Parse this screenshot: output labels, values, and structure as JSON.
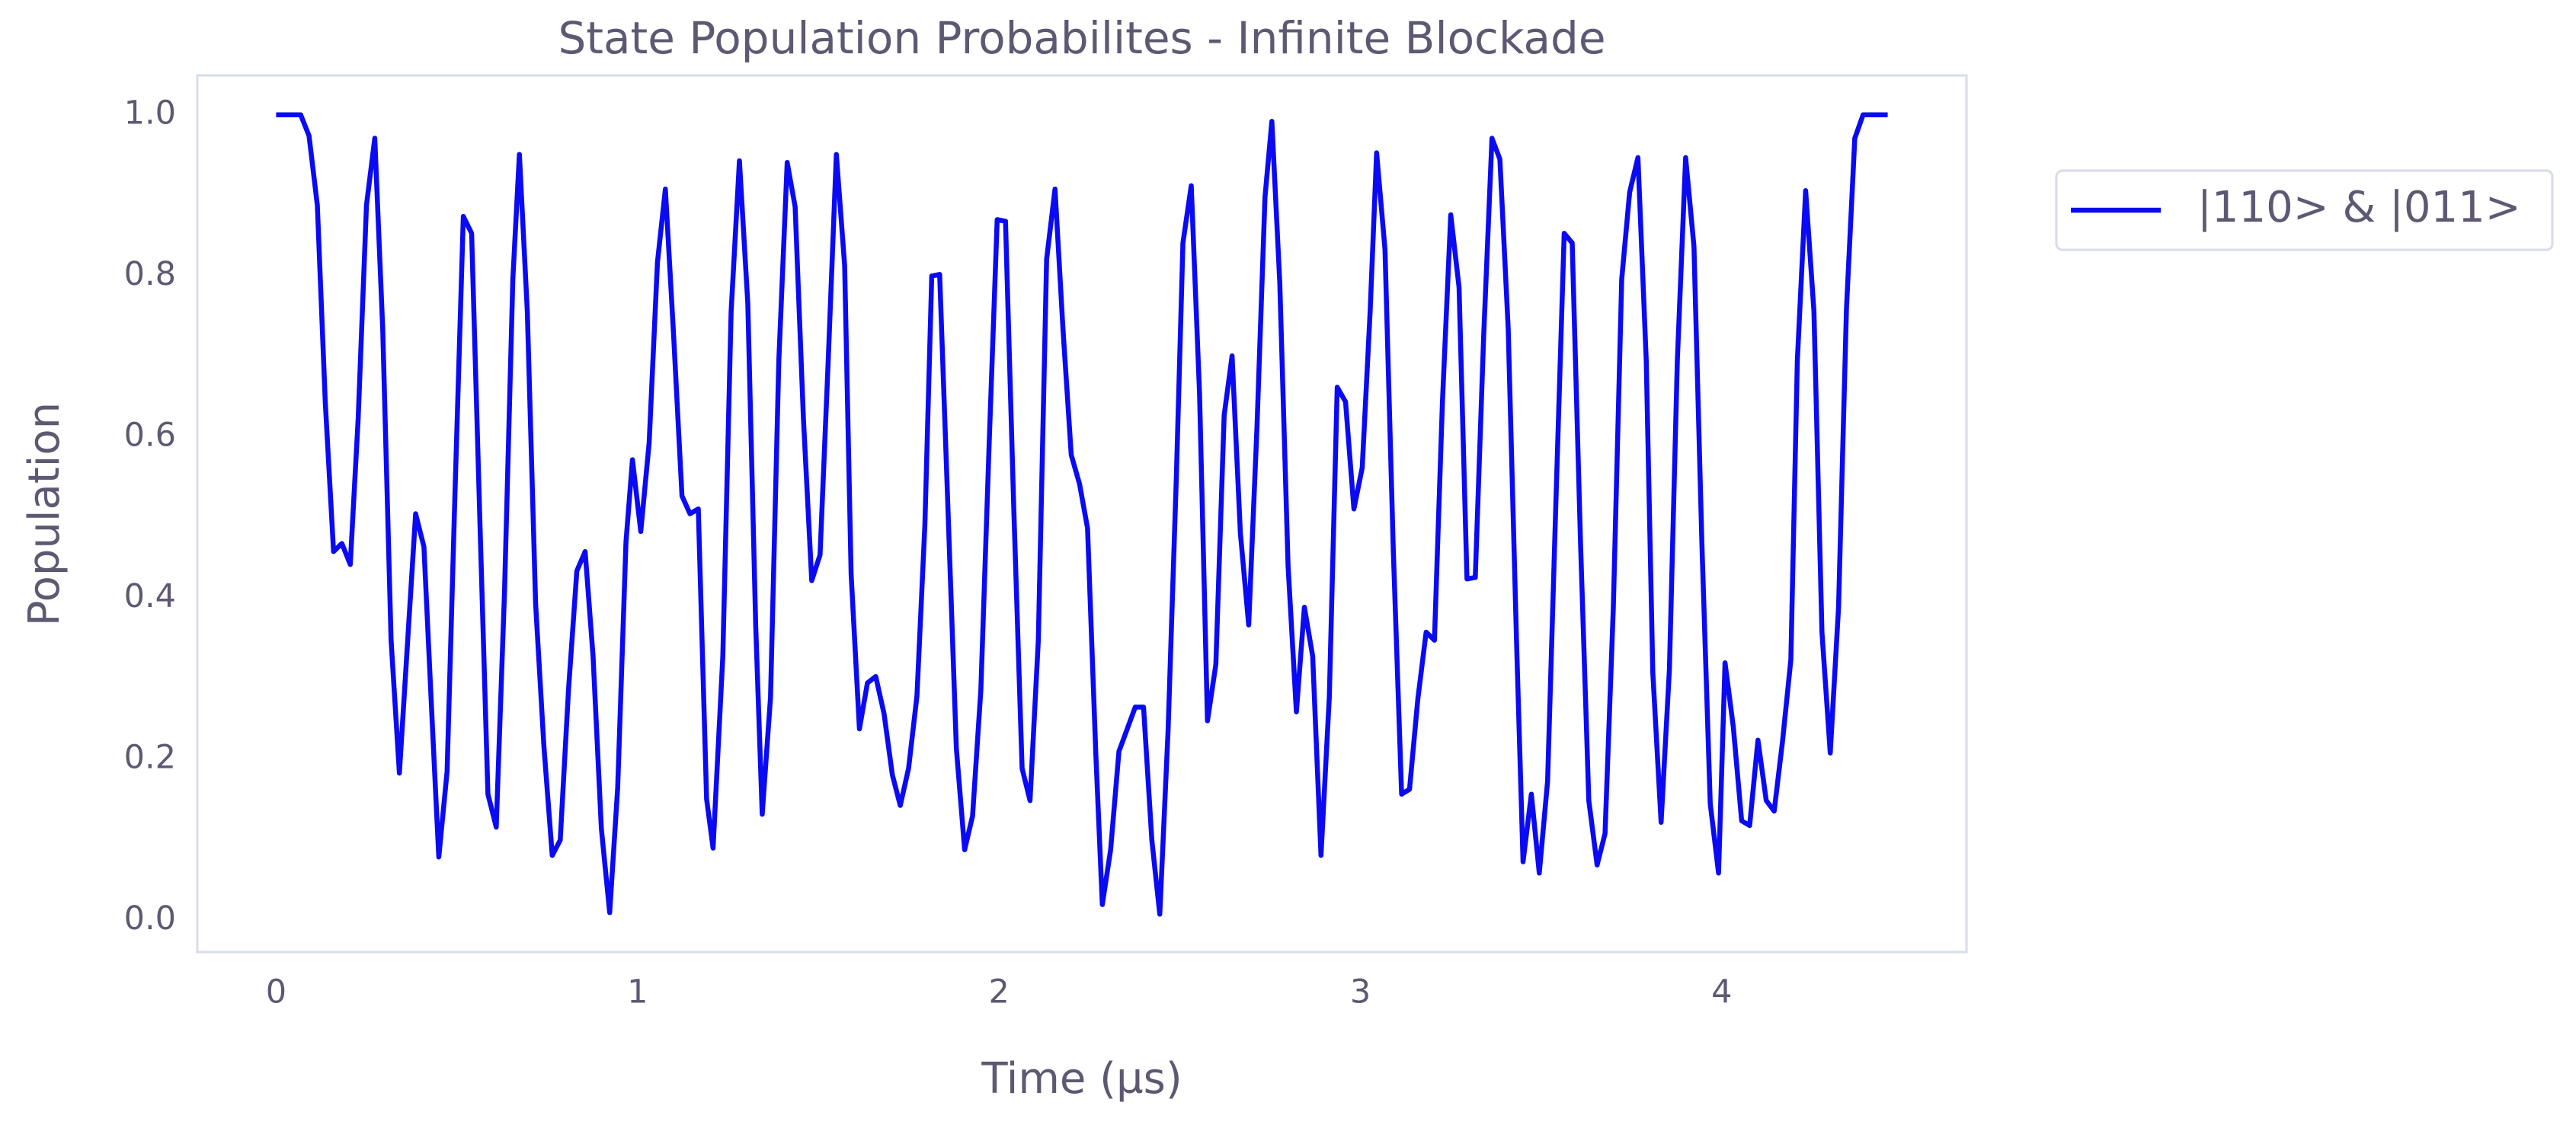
{
  "chart_data": {
    "type": "line",
    "title": "State Population Probabilites - Infinite Blockade",
    "xlabel": "Time (µs)",
    "ylabel": "Population",
    "xlim": [
      -0.218,
      4.677
    ],
    "ylim": [
      -0.039,
      1.049
    ],
    "xticks": [
      0,
      1,
      2,
      3,
      4
    ],
    "yticks": [
      {
        "value": 0,
        "label": "0.0"
      },
      {
        "value": 0.2,
        "label": "0.2"
      },
      {
        "value": 0.4,
        "label": "0.4"
      },
      {
        "value": 0.6,
        "label": "0.6"
      },
      {
        "value": 0.8,
        "label": "0.8"
      },
      {
        "value": 1.0,
        "label": "1.0"
      }
    ],
    "grid": false,
    "legend": "outside-right",
    "x": [
      0,
      0.068,
      0.091,
      0.114,
      0.136,
      0.159,
      0.182,
      0.205,
      0.227,
      0.25,
      0.273,
      0.295,
      0.318,
      0.341,
      0.364,
      0.386,
      0.409,
      0.432,
      0.45,
      0.473,
      0.495,
      0.518,
      0.541,
      0.564,
      0.586,
      0.609,
      0.632,
      0.655,
      0.673,
      0.695,
      0.718,
      0.741,
      0.764,
      0.786,
      0.809,
      0.832,
      0.855,
      0.877,
      0.9,
      0.923,
      0.945,
      0.968,
      0.986,
      1.009,
      1.032,
      1.055,
      1.077,
      1.1,
      1.123,
      1.145,
      1.168,
      1.191,
      1.209,
      1.236,
      1.259,
      1.282,
      1.305,
      1.327,
      1.345,
      1.368,
      1.391,
      1.414,
      1.436,
      1.459,
      1.482,
      1.505,
      1.527,
      1.55,
      1.573,
      1.591,
      1.614,
      1.636,
      1.659,
      1.682,
      1.705,
      1.727,
      1.75,
      1.773,
      1.795,
      1.814,
      1.836,
      1.859,
      1.882,
      1.905,
      1.927,
      1.95,
      1.973,
      1.995,
      2.018,
      2.041,
      2.064,
      2.086,
      2.109,
      2.132,
      2.155,
      2.177,
      2.2,
      2.223,
      2.245,
      2.268,
      2.286,
      2.309,
      2.332,
      2.355,
      2.377,
      2.4,
      2.423,
      2.445,
      2.468,
      2.491,
      2.509,
      2.532,
      2.555,
      2.577,
      2.6,
      2.623,
      2.645,
      2.668,
      2.691,
      2.714,
      2.736,
      2.755,
      2.777,
      2.8,
      2.823,
      2.845,
      2.868,
      2.891,
      2.914,
      2.936,
      2.959,
      2.982,
      3.005,
      3.027,
      3.045,
      3.068,
      3.091,
      3.114,
      3.136,
      3.159,
      3.182,
      3.205,
      3.227,
      3.25,
      3.273,
      3.295,
      3.318,
      3.341,
      3.364,
      3.386,
      3.409,
      3.432,
      3.45,
      3.473,
      3.495,
      3.518,
      3.541,
      3.564,
      3.586,
      3.609,
      3.632,
      3.655,
      3.677,
      3.7,
      3.723,
      3.745,
      3.768,
      3.791,
      3.809,
      3.832,
      3.855,
      3.877,
      3.9,
      3.923,
      3.945,
      3.968,
      3.991,
      4.009,
      4.032,
      4.055,
      4.077,
      4.1,
      4.123,
      4.145,
      4.168,
      4.191,
      4.209,
      4.232,
      4.255,
      4.277,
      4.3,
      4.323,
      4.345,
      4.368,
      4.391,
      4.459
    ],
    "series": [
      {
        "name": "|110> & |011>",
        "color": "#0a0af5",
        "values": [
          1.0,
          1.0,
          0.974,
          0.888,
          0.644,
          0.458,
          0.468,
          0.442,
          0.623,
          0.888,
          0.971,
          0.735,
          0.348,
          0.183,
          0.348,
          0.505,
          0.464,
          0.246,
          0.079,
          0.185,
          0.532,
          0.874,
          0.853,
          0.491,
          0.157,
          0.116,
          0.409,
          0.796,
          0.951,
          0.756,
          0.393,
          0.216,
          0.081,
          0.1,
          0.287,
          0.434,
          0.458,
          0.328,
          0.114,
          0.01,
          0.165,
          0.47,
          0.572,
          0.483,
          0.593,
          0.817,
          0.908,
          0.725,
          0.527,
          0.505,
          0.511,
          0.151,
          0.09,
          0.328,
          0.756,
          0.943,
          0.766,
          0.365,
          0.132,
          0.277,
          0.695,
          0.941,
          0.886,
          0.623,
          0.422,
          0.454,
          0.69,
          0.951,
          0.813,
          0.43,
          0.238,
          0.295,
          0.303,
          0.257,
          0.181,
          0.143,
          0.189,
          0.279,
          0.491,
          0.8,
          0.802,
          0.511,
          0.214,
          0.088,
          0.13,
          0.287,
          0.593,
          0.87,
          0.868,
          0.511,
          0.189,
          0.149,
          0.348,
          0.821,
          0.908,
          0.735,
          0.578,
          0.542,
          0.487,
          0.206,
          0.02,
          0.088,
          0.21,
          0.238,
          0.265,
          0.265,
          0.1,
          0.008,
          0.236,
          0.552,
          0.841,
          0.912,
          0.654,
          0.248,
          0.318,
          0.627,
          0.701,
          0.481,
          0.367,
          0.613,
          0.898,
          0.992,
          0.792,
          0.44,
          0.259,
          0.389,
          0.328,
          0.081,
          0.277,
          0.662,
          0.644,
          0.511,
          0.562,
          0.756,
          0.953,
          0.833,
          0.46,
          0.157,
          0.163,
          0.275,
          0.358,
          0.348,
          0.644,
          0.876,
          0.786,
          0.424,
          0.426,
          0.725,
          0.971,
          0.945,
          0.735,
          0.348,
          0.073,
          0.157,
          0.059,
          0.173,
          0.519,
          0.853,
          0.841,
          0.47,
          0.149,
          0.069,
          0.108,
          0.389,
          0.796,
          0.904,
          0.947,
          0.695,
          0.308,
          0.122,
          0.312,
          0.695,
          0.947,
          0.837,
          0.466,
          0.145,
          0.059,
          0.32,
          0.24,
          0.124,
          0.118,
          0.224,
          0.149,
          0.136,
          0.222,
          0.324,
          0.695,
          0.906,
          0.756,
          0.358,
          0.208,
          0.389,
          0.76,
          0.971,
          1.0,
          1.0
        ]
      }
    ]
  }
}
